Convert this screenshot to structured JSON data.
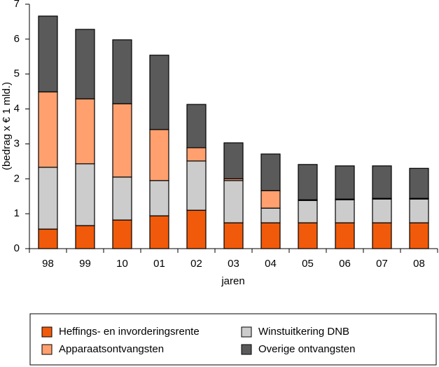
{
  "chart_data": {
    "type": "stacked_bar",
    "y_label": "(bedrag x € 1 mld.)",
    "x_label": "jaren",
    "categories": [
      "98",
      "99",
      "10",
      "01",
      "02",
      "03",
      "04",
      "05",
      "06",
      "07",
      "08"
    ],
    "series": [
      {
        "name": "Heffings- en invorderingsrente",
        "color": "#f05a0a",
        "values": [
          0.56,
          0.66,
          0.82,
          0.94,
          1.1,
          0.74,
          0.74,
          0.74,
          0.74,
          0.74,
          0.74
        ]
      },
      {
        "name": "Winstuitkering DNB",
        "color": "#cccccc",
        "values": [
          1.77,
          1.77,
          1.23,
          1.01,
          1.41,
          1.21,
          0.42,
          0.64,
          0.66,
          0.68,
          0.68
        ]
      },
      {
        "name": "Apparaatsontvangsten",
        "color": "#ffa06e",
        "values": [
          2.16,
          1.86,
          2.1,
          1.46,
          0.38,
          0.05,
          0.5,
          0.02,
          0.02,
          0.02,
          0.02
        ]
      },
      {
        "name": "Overige ontvangsten",
        "color": "#5a5a5a",
        "values": [
          2.17,
          1.99,
          1.83,
          2.13,
          1.24,
          1.03,
          1.05,
          1.01,
          0.95,
          0.93,
          0.86
        ]
      }
    ],
    "ylim": [
      0,
      7
    ],
    "yticks": [
      0,
      1,
      2,
      3,
      4,
      5,
      6,
      7
    ]
  }
}
